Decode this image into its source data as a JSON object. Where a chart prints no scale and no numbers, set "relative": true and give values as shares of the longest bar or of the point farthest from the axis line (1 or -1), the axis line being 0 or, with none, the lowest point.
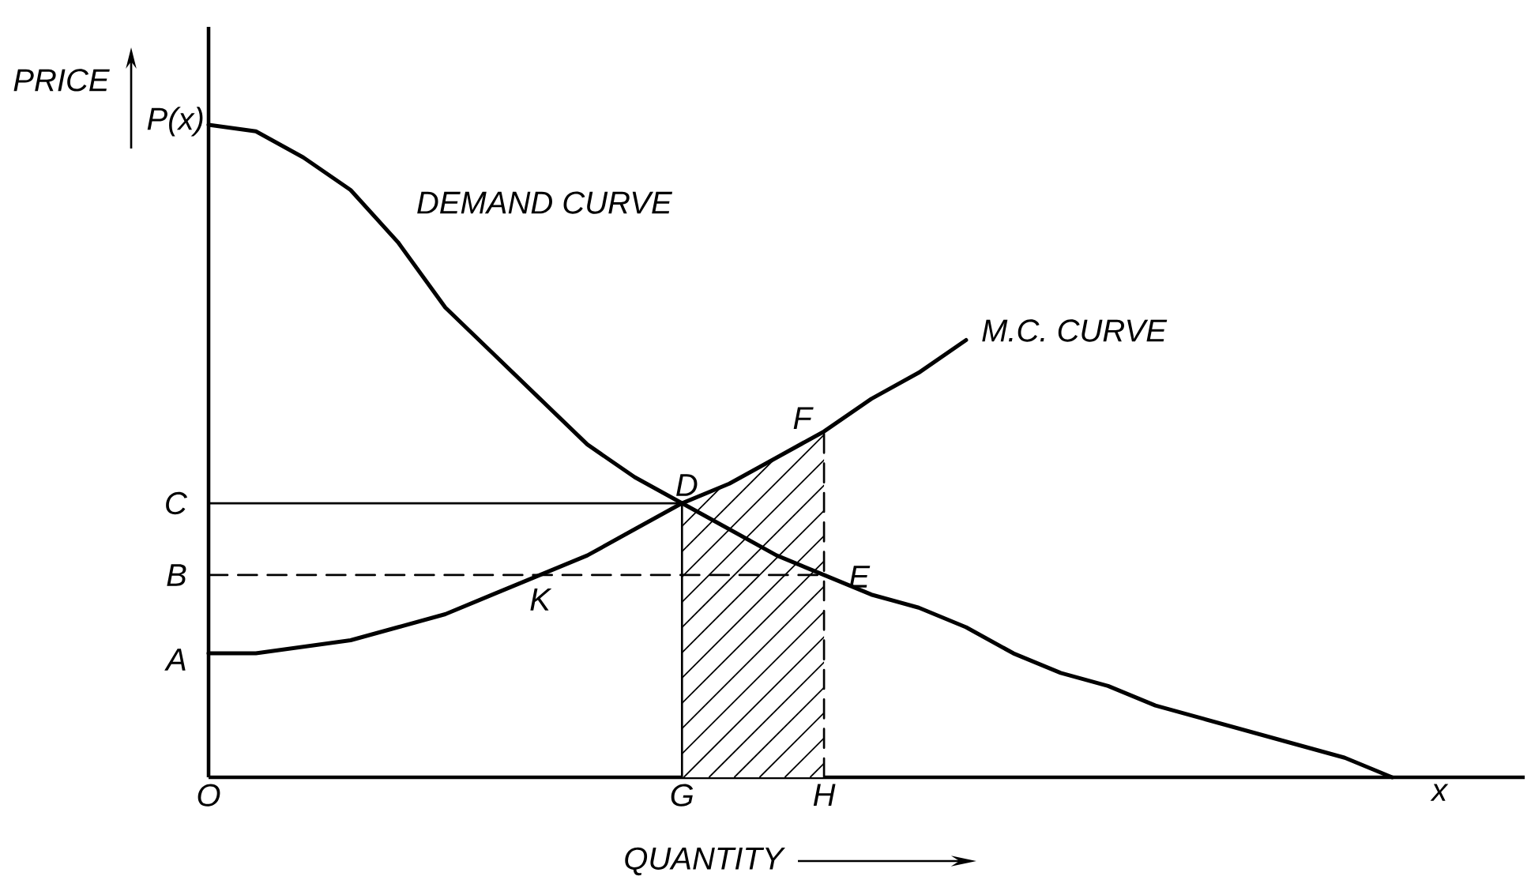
{
  "chart_data": {
    "type": "line",
    "relative": true,
    "xlabel": "QUANTITY",
    "ylabel": "PRICE",
    "categories": [
      "O",
      null,
      null,
      null,
      null,
      null,
      null,
      null,
      null,
      null,
      "G",
      null,
      null,
      "H",
      null,
      null,
      null,
      null,
      null,
      null,
      null,
      null,
      null,
      null,
      null,
      null,
      "x"
    ],
    "series": [
      {
        "name": "M.C. CURVE",
        "color": "#000000",
        "values": [
          0.19,
          0.19,
          0.2,
          0.21,
          0.23,
          0.25,
          0.28,
          0.31,
          0.34,
          0.38,
          0.42,
          0.45,
          0.49,
          0.53,
          0.58,
          0.62,
          0.67,
          null,
          null,
          null,
          null,
          null,
          null,
          null,
          null,
          null,
          null
        ]
      },
      {
        "name": "DEMAND CURVE",
        "color": "#000000",
        "values": [
          1,
          0.99,
          0.95,
          0.9,
          0.82,
          0.72,
          0.65,
          0.58,
          0.51,
          0.46,
          0.42,
          0.38,
          0.34,
          0.31,
          0.28,
          0.26,
          0.23,
          0.19,
          0.16,
          0.14,
          0.11,
          0.09,
          0.07,
          0.05,
          0.03,
          0,
          null
        ]
      },
      {
        "color": "#000000",
        "x": [
          "O",
          "G"
        ],
        "values": [
          0.42,
          0.42
        ]
      },
      {
        "color": "#000000",
        "x": [
          "O",
          "H"
        ],
        "values": [
          0.31,
          0.31
        ],
        "line_style": "dashed"
      },
      {
        "color": "#000000",
        "x": [
          "G",
          "G"
        ],
        "values": [
          0,
          0.42
        ]
      },
      {
        "color": "#000000",
        "x": [
          "H",
          "H"
        ],
        "values": [
          0,
          0.53
        ],
        "line_style": "dashed"
      },
      {
        "type": "area",
        "color": "#ffffff",
        "values": [
          null,
          null,
          null,
          null,
          null,
          null,
          null,
          null,
          null,
          null,
          0.42,
          0.45,
          0.49,
          0.53,
          null,
          null,
          null,
          null,
          null,
          null,
          null,
          null,
          null,
          null,
          null,
          null,
          null
        ]
      }
    ],
    "annotations": [
      {
        "text": "P(x)",
        "x": "O",
        "y": 1
      },
      {
        "text": "C",
        "x": "O",
        "y": 0.42
      },
      {
        "text": "B",
        "x": "O",
        "y": 0.31
      },
      {
        "text": "A",
        "x": "O",
        "y": 0.19
      },
      {
        "text": "D",
        "x": "G",
        "y": 0.42
      },
      {
        "text": "E",
        "x": "H",
        "y": 0.31
      },
      {
        "text": "F",
        "x": "H",
        "y": 0.53
      },
      {
        "text": "K",
        "y": 0.31
      }
    ]
  }
}
